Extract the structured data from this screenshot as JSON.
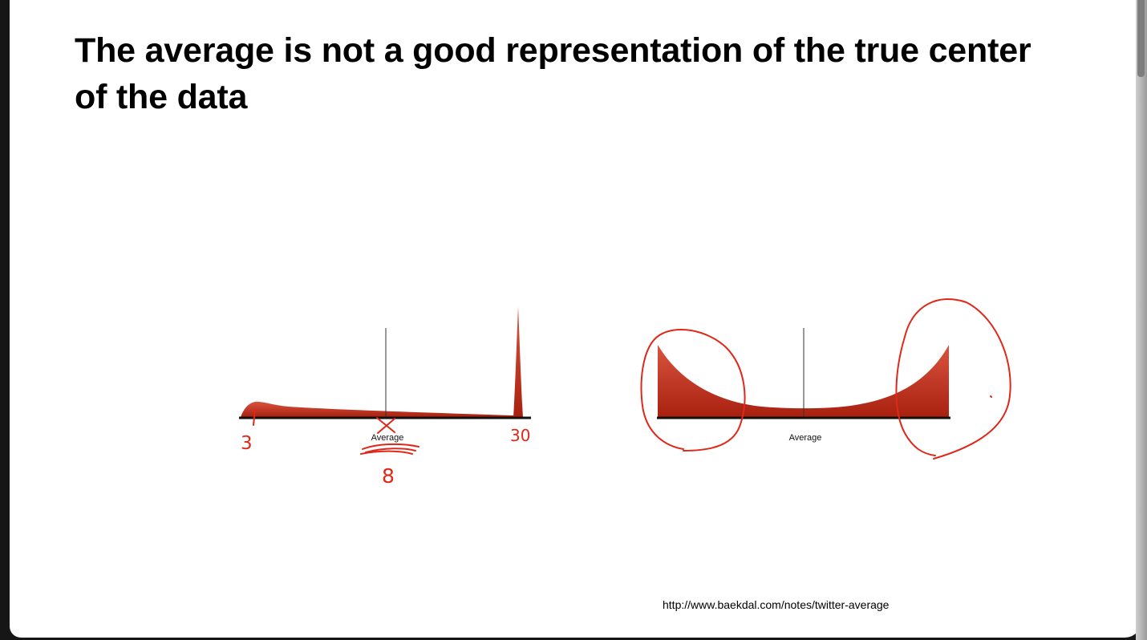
{
  "slide": {
    "title": "The average is not a good representation of the true center of the data",
    "source": "http://www.baekdal.com/notes/twitter-average"
  },
  "diagrams": {
    "left": {
      "axis_label": "Average",
      "annotations": {
        "min": "3",
        "max": "30",
        "average": "8"
      }
    },
    "right": {
      "axis_label": "Average"
    }
  },
  "colors": {
    "fill_light": "#d9543f",
    "fill_dark": "#a9200f",
    "ink": "#e0281a",
    "axis": "#111111"
  }
}
